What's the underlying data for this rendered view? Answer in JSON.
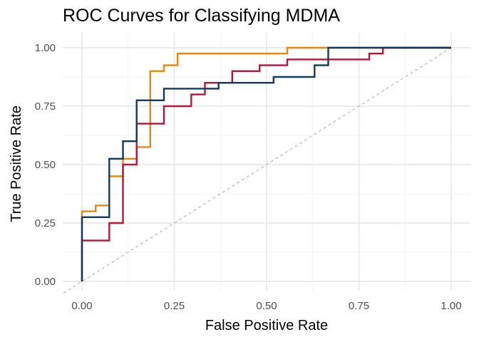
{
  "chart_data": {
    "type": "line",
    "title": "ROC Curves for Classifying MDMA",
    "xlabel": "False Positive Rate",
    "ylabel": "True Positive Rate",
    "xlim": [
      0,
      1
    ],
    "ylim": [
      0,
      1
    ],
    "x_ticks": [
      "0.00",
      "0.25",
      "0.50",
      "0.75",
      "1.00"
    ],
    "y_ticks": [
      "0.00",
      "0.25",
      "0.50",
      "0.75",
      "1.00"
    ],
    "grid": true,
    "legend": "none",
    "reference_line": {
      "from": [
        0,
        0
      ],
      "to": [
        1,
        1
      ],
      "style": "dashed",
      "color": "#aaaaaa"
    },
    "series": [
      {
        "color": "#e8870e",
        "points": [
          [
            0,
            0
          ],
          [
            0,
            0.3
          ],
          [
            0.037,
            0.3
          ],
          [
            0.037,
            0.325
          ],
          [
            0.074,
            0.325
          ],
          [
            0.074,
            0.45
          ],
          [
            0.111,
            0.45
          ],
          [
            0.111,
            0.525
          ],
          [
            0.148,
            0.525
          ],
          [
            0.148,
            0.575
          ],
          [
            0.185,
            0.575
          ],
          [
            0.185,
            0.9
          ],
          [
            0.222,
            0.9
          ],
          [
            0.222,
            0.925
          ],
          [
            0.259,
            0.925
          ],
          [
            0.259,
            0.975
          ],
          [
            0.556,
            0.975
          ],
          [
            0.556,
            1.0
          ],
          [
            1.0,
            1.0
          ]
        ]
      },
      {
        "color": "#b5173a",
        "points": [
          [
            0,
            0
          ],
          [
            0,
            0.175
          ],
          [
            0.074,
            0.175
          ],
          [
            0.074,
            0.25
          ],
          [
            0.111,
            0.25
          ],
          [
            0.111,
            0.5
          ],
          [
            0.148,
            0.5
          ],
          [
            0.148,
            0.675
          ],
          [
            0.222,
            0.675
          ],
          [
            0.222,
            0.75
          ],
          [
            0.296,
            0.75
          ],
          [
            0.296,
            0.8
          ],
          [
            0.333,
            0.8
          ],
          [
            0.333,
            0.85
          ],
          [
            0.407,
            0.85
          ],
          [
            0.407,
            0.9
          ],
          [
            0.481,
            0.9
          ],
          [
            0.481,
            0.925
          ],
          [
            0.556,
            0.925
          ],
          [
            0.556,
            0.95
          ],
          [
            0.778,
            0.95
          ],
          [
            0.778,
            0.975
          ],
          [
            0.815,
            0.975
          ],
          [
            0.815,
            1.0
          ],
          [
            1.0,
            1.0
          ]
        ]
      },
      {
        "color": "#123a5e",
        "points": [
          [
            0,
            0
          ],
          [
            0,
            0.275
          ],
          [
            0.074,
            0.275
          ],
          [
            0.074,
            0.525
          ],
          [
            0.111,
            0.525
          ],
          [
            0.111,
            0.6
          ],
          [
            0.148,
            0.6
          ],
          [
            0.148,
            0.775
          ],
          [
            0.222,
            0.775
          ],
          [
            0.222,
            0.825
          ],
          [
            0.37,
            0.825
          ],
          [
            0.37,
            0.85
          ],
          [
            0.519,
            0.85
          ],
          [
            0.519,
            0.875
          ],
          [
            0.63,
            0.875
          ],
          [
            0.63,
            0.925
          ],
          [
            0.667,
            0.925
          ],
          [
            0.667,
            1.0
          ],
          [
            1.0,
            1.0
          ]
        ]
      }
    ]
  }
}
